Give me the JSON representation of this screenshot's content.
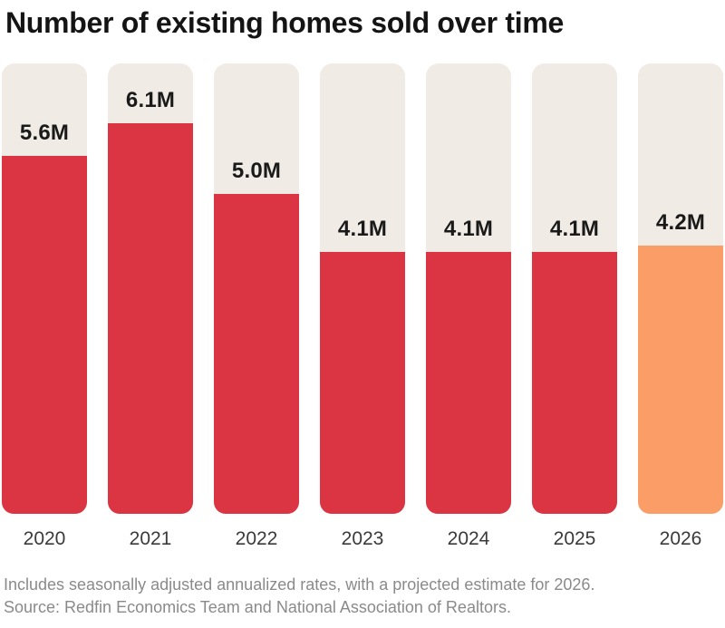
{
  "title": "Number of existing homes sold over time",
  "chart_data": {
    "type": "bar",
    "categories": [
      "2020",
      "2021",
      "2022",
      "2023",
      "2024",
      "2025",
      "2026"
    ],
    "values": [
      5.6,
      6.1,
      5.0,
      4.1,
      4.1,
      4.1,
      4.2
    ],
    "value_labels": [
      "5.6M",
      "6.1M",
      "5.0M",
      "4.1M",
      "4.1M",
      "4.1M",
      "4.2M"
    ],
    "title": "Number of existing homes sold over time",
    "xlabel": "",
    "ylabel": "",
    "ylim": [
      0,
      7.04
    ],
    "grid": false,
    "legend": false,
    "highlight_index": 6,
    "notes": "2026 bar is a projected estimate shown in orange; all other bars red; bars drawn inside full-height beige tracks"
  },
  "colors": {
    "bar_default": "#DB3442",
    "bar_highlight": "#FA9D66",
    "track": "#F0EBE4",
    "value_label": "#1A1A1A",
    "year_label": "#3A3A3A",
    "footer_text": "#8A8A8A",
    "title_text": "#141414",
    "background": "#FFFFFF"
  },
  "footer": {
    "line1": "Includes seasonally adjusted annualized rates, with a projected estimate for 2026.",
    "line2": "Source: Redfin Economics Team and National Association of Realtors."
  }
}
